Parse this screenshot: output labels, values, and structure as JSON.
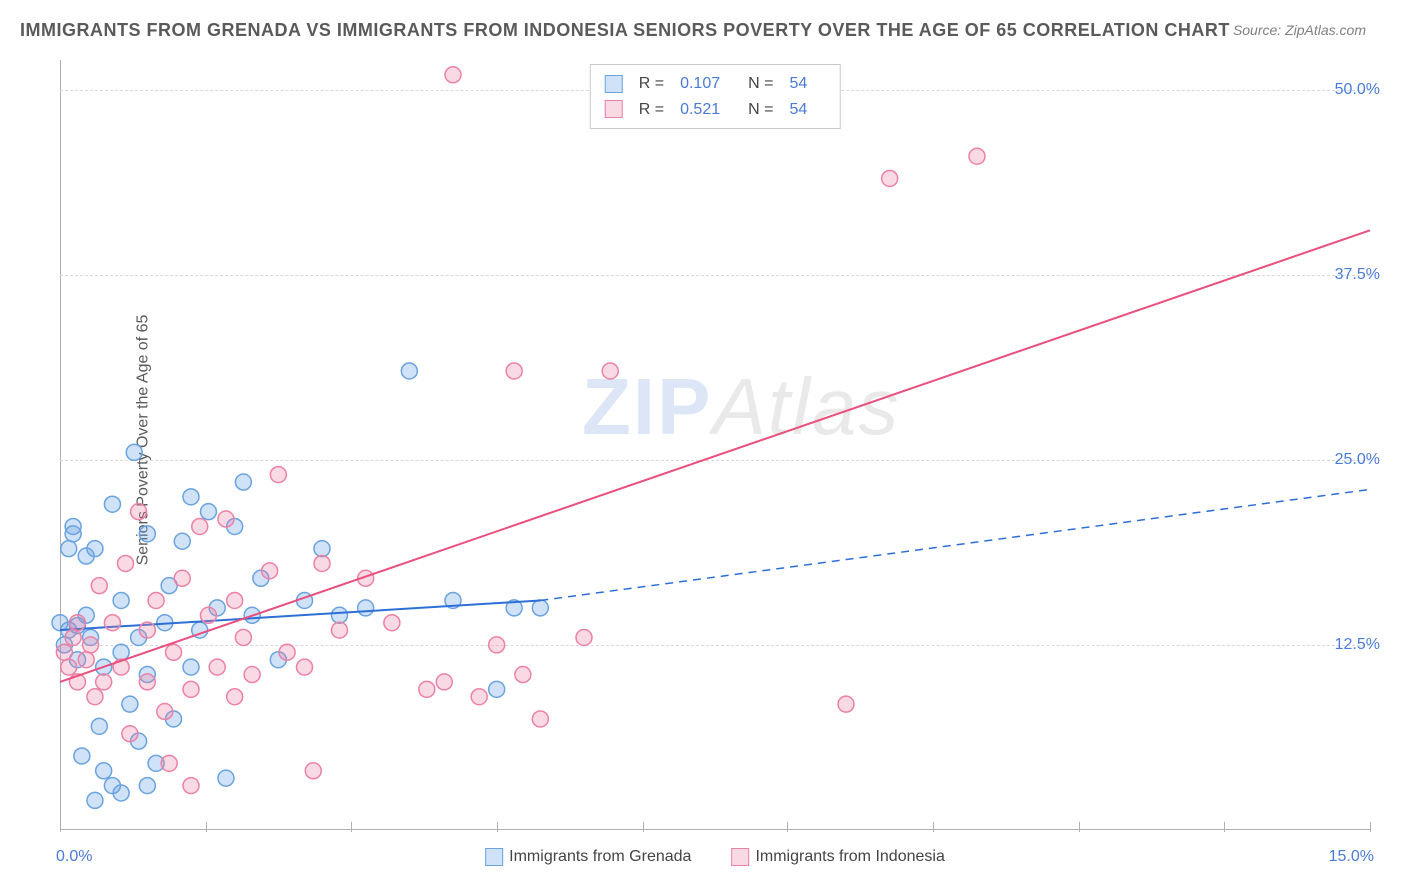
{
  "title": "IMMIGRANTS FROM GRENADA VS IMMIGRANTS FROM INDONESIA SENIORS POVERTY OVER THE AGE OF 65 CORRELATION CHART",
  "source": "Source: ZipAtlas.com",
  "ylabel": "Seniors Poverty Over the Age of 65",
  "watermark_a": "ZIP",
  "watermark_b": "Atlas",
  "chart": {
    "type": "scatter",
    "background_color": "#ffffff",
    "grid_color": "#d8d8d8",
    "axis_color": "#b0b0b0",
    "xlim": [
      0.0,
      15.0
    ],
    "ylim": [
      0.0,
      52.0
    ],
    "x_ticks": [
      0.0,
      5.0,
      10.0,
      15.0
    ],
    "x_minor_ticks": [
      1.67,
      3.33,
      6.67,
      8.33,
      11.67,
      13.33
    ],
    "x_tick_labels": {
      "first": "0.0%",
      "last": "15.0%"
    },
    "y_gridlines": [
      12.5,
      25.0,
      37.5,
      50.0
    ],
    "y_tick_labels": [
      "12.5%",
      "25.0%",
      "37.5%",
      "50.0%"
    ],
    "marker_radius": 8,
    "marker_stroke_width": 1.5,
    "line_width": 2,
    "series": [
      {
        "name": "Immigrants from Grenada",
        "color_fill": "rgba(100,160,230,0.30)",
        "color_stroke": "#6aa3e0",
        "line_color": "#2d6fd6",
        "r_value": "0.107",
        "n_value": "54",
        "trend": {
          "x1": 0.0,
          "y1": 13.5,
          "x2": 5.5,
          "y2": 15.5,
          "x3": 15.0,
          "y3": 23.0,
          "solid_to_x": 5.5
        },
        "points": [
          [
            0.0,
            14.0
          ],
          [
            0.05,
            12.5
          ],
          [
            0.1,
            13.5
          ],
          [
            0.1,
            19.0
          ],
          [
            0.15,
            20.5
          ],
          [
            0.15,
            20.0
          ],
          [
            0.2,
            13.8
          ],
          [
            0.2,
            11.5
          ],
          [
            0.25,
            5.0
          ],
          [
            0.3,
            18.5
          ],
          [
            0.3,
            14.5
          ],
          [
            0.35,
            13.0
          ],
          [
            0.4,
            19.0
          ],
          [
            0.4,
            2.0
          ],
          [
            0.45,
            7.0
          ],
          [
            0.5,
            11.0
          ],
          [
            0.5,
            4.0
          ],
          [
            0.6,
            3.0
          ],
          [
            0.6,
            22.0
          ],
          [
            0.7,
            15.5
          ],
          [
            0.7,
            12.0
          ],
          [
            0.8,
            8.5
          ],
          [
            0.85,
            25.5
          ],
          [
            0.9,
            13.0
          ],
          [
            0.9,
            6.0
          ],
          [
            1.0,
            20.0
          ],
          [
            1.0,
            10.5
          ],
          [
            1.1,
            4.5
          ],
          [
            1.2,
            14.0
          ],
          [
            1.25,
            16.5
          ],
          [
            1.3,
            7.5
          ],
          [
            1.4,
            19.5
          ],
          [
            1.5,
            11.0
          ],
          [
            1.5,
            22.5
          ],
          [
            1.6,
            13.5
          ],
          [
            1.7,
            21.5
          ],
          [
            1.8,
            15.0
          ],
          [
            1.9,
            3.5
          ],
          [
            2.0,
            20.5
          ],
          [
            2.1,
            23.5
          ],
          [
            2.2,
            14.5
          ],
          [
            2.3,
            17.0
          ],
          [
            2.5,
            11.5
          ],
          [
            2.8,
            15.5
          ],
          [
            3.0,
            19.0
          ],
          [
            3.2,
            14.5
          ],
          [
            3.5,
            15.0
          ],
          [
            4.0,
            31.0
          ],
          [
            4.5,
            15.5
          ],
          [
            5.0,
            9.5
          ],
          [
            5.2,
            15.0
          ],
          [
            5.5,
            15.0
          ],
          [
            1.0,
            3.0
          ],
          [
            0.7,
            2.5
          ]
        ]
      },
      {
        "name": "Immigrants from Indonesia",
        "color_fill": "rgba(235,130,165,0.30)",
        "color_stroke": "#eb82a5",
        "line_color": "#e94f7f",
        "r_value": "0.521",
        "n_value": "54",
        "trend": {
          "x1": 0.0,
          "y1": 10.0,
          "x2": 15.0,
          "y2": 40.5,
          "solid_to_x": 15.0
        },
        "points": [
          [
            0.05,
            12.0
          ],
          [
            0.1,
            11.0
          ],
          [
            0.15,
            13.0
          ],
          [
            0.2,
            10.0
          ],
          [
            0.2,
            14.0
          ],
          [
            0.3,
            11.5
          ],
          [
            0.35,
            12.5
          ],
          [
            0.4,
            9.0
          ],
          [
            0.45,
            16.5
          ],
          [
            0.5,
            10.0
          ],
          [
            0.6,
            14.0
          ],
          [
            0.7,
            11.0
          ],
          [
            0.75,
            18.0
          ],
          [
            0.8,
            6.5
          ],
          [
            0.9,
            21.5
          ],
          [
            1.0,
            13.5
          ],
          [
            1.0,
            10.0
          ],
          [
            1.1,
            15.5
          ],
          [
            1.2,
            8.0
          ],
          [
            1.25,
            4.5
          ],
          [
            1.3,
            12.0
          ],
          [
            1.4,
            17.0
          ],
          [
            1.5,
            9.5
          ],
          [
            1.6,
            20.5
          ],
          [
            1.7,
            14.5
          ],
          [
            1.8,
            11.0
          ],
          [
            1.9,
            21.0
          ],
          [
            2.0,
            15.5
          ],
          [
            2.1,
            13.0
          ],
          [
            2.2,
            10.5
          ],
          [
            2.4,
            17.5
          ],
          [
            2.5,
            24.0
          ],
          [
            2.6,
            12.0
          ],
          [
            2.8,
            11.0
          ],
          [
            2.9,
            4.0
          ],
          [
            3.0,
            18.0
          ],
          [
            3.2,
            13.5
          ],
          [
            3.5,
            17.0
          ],
          [
            3.8,
            14.0
          ],
          [
            4.2,
            9.5
          ],
          [
            4.4,
            10.0
          ],
          [
            4.5,
            51.0
          ],
          [
            4.8,
            9.0
          ],
          [
            5.0,
            12.5
          ],
          [
            5.2,
            31.0
          ],
          [
            5.3,
            10.5
          ],
          [
            5.5,
            7.5
          ],
          [
            6.0,
            13.0
          ],
          [
            6.3,
            31.0
          ],
          [
            9.0,
            8.5
          ],
          [
            9.5,
            44.0
          ],
          [
            10.5,
            45.5
          ],
          [
            1.5,
            3.0
          ],
          [
            2.0,
            9.0
          ]
        ]
      }
    ]
  },
  "legend_top": {
    "r_label": "R =",
    "n_label": "N ="
  },
  "legend_bottom_labels": [
    "Immigrants from Grenada",
    "Immigrants from Indonesia"
  ]
}
